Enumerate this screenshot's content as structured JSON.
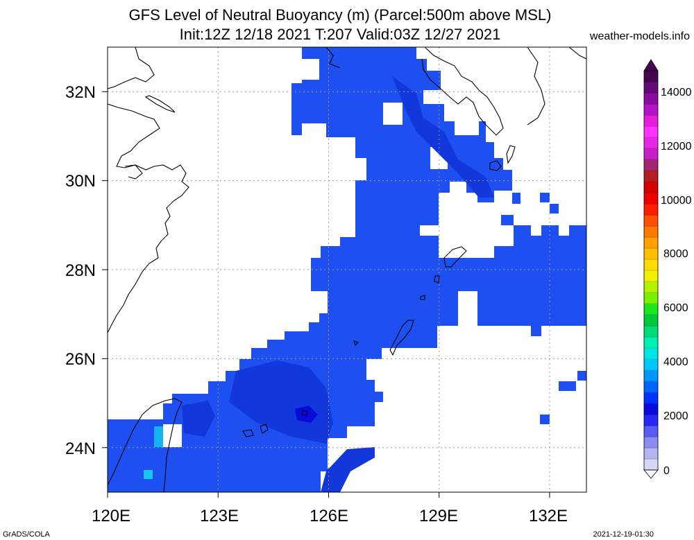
{
  "header": {
    "title_line1": "GFS Level of Neutral Buoyancy (m) (Parcel:500m above MSL)",
    "title_line2": "Init:12Z 12/18 2021 T:207 Valid:03Z 12/27 2021",
    "site": "weather-models.info"
  },
  "footer": {
    "credit": "GrADS/COLA",
    "timestamp": "2021-12-19-01:30"
  },
  "map": {
    "lon_labels": [
      "120E",
      "123E",
      "126E",
      "129E",
      "132E"
    ],
    "lat_labels": [
      "32N",
      "30N",
      "28N",
      "26N",
      "24N"
    ],
    "field_color_main": "#1e4ff0",
    "field_color_dark": "#1238dc",
    "coast_color": "#000000",
    "grid_color": "#9a9a9a"
  },
  "colorbar": {
    "labels": [
      "14000",
      "12000",
      "10000",
      "8000",
      "6000",
      "4000",
      "2000",
      "0"
    ],
    "colors": [
      "#d7d7f5",
      "#b4b4f0",
      "#8c8cf0",
      "#5a5af5",
      "#2828f5",
      "#0a0adc",
      "#0032ff",
      "#0064ff",
      "#0096ff",
      "#00c8ff",
      "#00e6e6",
      "#00f0b4",
      "#00dc78",
      "#00c83c",
      "#1ee61e",
      "#78f000",
      "#b4f000",
      "#f0f000",
      "#ffdc00",
      "#ffbe00",
      "#ffa000",
      "#ff7800",
      "#ff5000",
      "#ff1e00",
      "#ee0000",
      "#d20000",
      "#b41e1e",
      "#a0286e",
      "#c81ec8",
      "#e628e6",
      "#ff32ff",
      "#e61edc",
      "#b414c8",
      "#8c0aa0",
      "#640a78",
      "#46054f"
    ]
  }
}
